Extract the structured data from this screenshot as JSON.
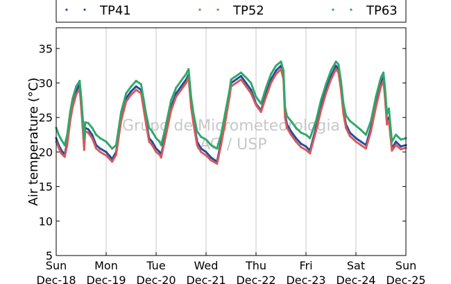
{
  "chart_data": {
    "type": "scatter",
    "ylabel": "Air temperature (°C)",
    "xlabel": "",
    "title": "",
    "ylim": [
      5,
      38
    ],
    "yticks": [
      5,
      10,
      15,
      20,
      25,
      30,
      35
    ],
    "xlim": [
      0,
      7
    ],
    "x_unit": "days",
    "xticks": [
      {
        "x": 0,
        "day": "Sun",
        "date": "Dec-18"
      },
      {
        "x": 1,
        "day": "Mon",
        "date": "Dec-19"
      },
      {
        "x": 2,
        "day": "Tue",
        "date": "Dec-20"
      },
      {
        "x": 3,
        "day": "Wed",
        "date": "Dec-21"
      },
      {
        "x": 4,
        "day": "Thu",
        "date": "Dec-22"
      },
      {
        "x": 5,
        "day": "Fri",
        "date": "Dec-23"
      },
      {
        "x": 6,
        "day": "Sat",
        "date": "Dec-24"
      },
      {
        "x": 7,
        "day": "Sun",
        "date": "Dec-25"
      }
    ],
    "grid": "vertical",
    "legend_position": "top",
    "watermark": [
      "Grupo de Micrometeorologia",
      "IAG / USP"
    ],
    "series": [
      {
        "name": "TP41",
        "color": "#1f4e9c",
        "points": [
          [
            0.0,
            22.0
          ],
          [
            0.05,
            21.0
          ],
          [
            0.1,
            20.3
          ],
          [
            0.17,
            19.6
          ],
          [
            0.22,
            21.5
          ],
          [
            0.28,
            25.0
          ],
          [
            0.33,
            27.0
          ],
          [
            0.4,
            28.8
          ],
          [
            0.47,
            29.8
          ],
          [
            0.5,
            27.0
          ],
          [
            0.53,
            24.0
          ],
          [
            0.56,
            20.7
          ],
          [
            0.58,
            23.5
          ],
          [
            0.64,
            23.3
          ],
          [
            0.72,
            22.5
          ],
          [
            0.8,
            21.0
          ],
          [
            0.88,
            20.5
          ],
          [
            1.0,
            20.0
          ],
          [
            1.12,
            19.0
          ],
          [
            1.2,
            20.0
          ],
          [
            1.3,
            25.0
          ],
          [
            1.4,
            27.8
          ],
          [
            1.5,
            28.8
          ],
          [
            1.6,
            29.5
          ],
          [
            1.7,
            29.0
          ],
          [
            1.8,
            24.5
          ],
          [
            1.86,
            22.0
          ],
          [
            1.92,
            21.5
          ],
          [
            2.0,
            20.5
          ],
          [
            2.07,
            20.0
          ],
          [
            2.1,
            19.5
          ],
          [
            2.17,
            22.0
          ],
          [
            2.3,
            26.5
          ],
          [
            2.4,
            28.5
          ],
          [
            2.5,
            29.5
          ],
          [
            2.6,
            30.5
          ],
          [
            2.65,
            31.2
          ],
          [
            2.7,
            27.0
          ],
          [
            2.75,
            24.5
          ],
          [
            2.82,
            21.5
          ],
          [
            2.9,
            20.5
          ],
          [
            3.0,
            20.0
          ],
          [
            3.1,
            19.2
          ],
          [
            3.22,
            18.6
          ],
          [
            3.3,
            21.5
          ],
          [
            3.4,
            25.5
          ],
          [
            3.47,
            28.5
          ],
          [
            3.5,
            30.0
          ],
          [
            3.7,
            31.0
          ],
          [
            3.8,
            30.0
          ],
          [
            3.9,
            29.0
          ],
          [
            4.0,
            27.0
          ],
          [
            4.05,
            26.5
          ],
          [
            4.1,
            26.0
          ],
          [
            4.2,
            28.5
          ],
          [
            4.3,
            30.5
          ],
          [
            4.4,
            31.8
          ],
          [
            4.5,
            32.5
          ],
          [
            4.55,
            31.0
          ],
          [
            4.58,
            25.5
          ],
          [
            4.62,
            24.0
          ],
          [
            4.7,
            23.0
          ],
          [
            4.8,
            22.0
          ],
          [
            4.9,
            21.2
          ],
          [
            5.0,
            20.8
          ],
          [
            5.08,
            20.2
          ],
          [
            5.2,
            23.5
          ],
          [
            5.3,
            26.5
          ],
          [
            5.4,
            29.0
          ],
          [
            5.5,
            31.0
          ],
          [
            5.6,
            32.5
          ],
          [
            5.65,
            32.0
          ],
          [
            5.7,
            29.5
          ],
          [
            5.75,
            26.0
          ],
          [
            5.8,
            24.0
          ],
          [
            5.88,
            22.8
          ],
          [
            6.0,
            22.0
          ],
          [
            6.1,
            21.5
          ],
          [
            6.2,
            21.0
          ],
          [
            6.3,
            23.5
          ],
          [
            6.4,
            27.0
          ],
          [
            6.5,
            30.0
          ],
          [
            6.55,
            30.8
          ],
          [
            6.58,
            28.5
          ],
          [
            6.62,
            24.5
          ],
          [
            6.66,
            25.0
          ],
          [
            6.72,
            20.5
          ],
          [
            6.8,
            21.5
          ],
          [
            6.9,
            20.8
          ],
          [
            7.0,
            21.0
          ]
        ]
      },
      {
        "name": "TP52",
        "color": "#d85a5a",
        "points": [
          [
            0.0,
            21.5
          ],
          [
            0.05,
            20.6
          ],
          [
            0.1,
            19.8
          ],
          [
            0.17,
            19.3
          ],
          [
            0.22,
            21.0
          ],
          [
            0.28,
            24.5
          ],
          [
            0.33,
            26.5
          ],
          [
            0.4,
            28.3
          ],
          [
            0.47,
            29.2
          ],
          [
            0.5,
            26.5
          ],
          [
            0.53,
            23.5
          ],
          [
            0.56,
            20.3
          ],
          [
            0.58,
            23.0
          ],
          [
            0.64,
            22.8
          ],
          [
            0.72,
            22.0
          ],
          [
            0.8,
            20.5
          ],
          [
            0.88,
            20.0
          ],
          [
            1.0,
            19.5
          ],
          [
            1.12,
            18.6
          ],
          [
            1.2,
            19.6
          ],
          [
            1.3,
            24.5
          ],
          [
            1.4,
            27.3
          ],
          [
            1.5,
            28.3
          ],
          [
            1.6,
            29.0
          ],
          [
            1.7,
            28.5
          ],
          [
            1.8,
            24.0
          ],
          [
            1.86,
            21.5
          ],
          [
            1.92,
            21.0
          ],
          [
            2.0,
            20.0
          ],
          [
            2.07,
            19.6
          ],
          [
            2.1,
            19.2
          ],
          [
            2.17,
            21.5
          ],
          [
            2.3,
            26.0
          ],
          [
            2.4,
            28.0
          ],
          [
            2.5,
            29.0
          ],
          [
            2.6,
            30.0
          ],
          [
            2.65,
            30.8
          ],
          [
            2.7,
            26.5
          ],
          [
            2.75,
            24.0
          ],
          [
            2.82,
            21.0
          ],
          [
            2.9,
            20.0
          ],
          [
            3.0,
            19.5
          ],
          [
            3.1,
            18.8
          ],
          [
            3.22,
            18.3
          ],
          [
            3.3,
            21.0
          ],
          [
            3.4,
            25.0
          ],
          [
            3.47,
            28.0
          ],
          [
            3.5,
            29.5
          ],
          [
            3.7,
            30.5
          ],
          [
            3.8,
            29.5
          ],
          [
            3.9,
            28.5
          ],
          [
            4.0,
            26.8
          ],
          [
            4.05,
            26.3
          ],
          [
            4.1,
            25.8
          ],
          [
            4.2,
            28.0
          ],
          [
            4.3,
            30.0
          ],
          [
            4.4,
            31.3
          ],
          [
            4.5,
            32.0
          ],
          [
            4.55,
            30.5
          ],
          [
            4.58,
            25.0
          ],
          [
            4.62,
            23.5
          ],
          [
            4.7,
            22.5
          ],
          [
            4.8,
            21.5
          ],
          [
            4.9,
            20.7
          ],
          [
            5.0,
            20.3
          ],
          [
            5.08,
            19.8
          ],
          [
            5.2,
            23.0
          ],
          [
            5.3,
            26.0
          ],
          [
            5.4,
            28.5
          ],
          [
            5.5,
            30.5
          ],
          [
            5.6,
            32.0
          ],
          [
            5.65,
            31.5
          ],
          [
            5.7,
            29.0
          ],
          [
            5.75,
            25.5
          ],
          [
            5.8,
            23.5
          ],
          [
            5.88,
            22.3
          ],
          [
            6.0,
            21.5
          ],
          [
            6.1,
            21.0
          ],
          [
            6.2,
            20.5
          ],
          [
            6.3,
            23.0
          ],
          [
            6.4,
            26.5
          ],
          [
            6.5,
            29.5
          ],
          [
            6.55,
            30.3
          ],
          [
            6.58,
            28.0
          ],
          [
            6.62,
            24.0
          ],
          [
            6.66,
            24.5
          ],
          [
            6.72,
            20.2
          ],
          [
            6.8,
            21.0
          ],
          [
            6.9,
            20.4
          ],
          [
            7.0,
            20.6
          ]
        ]
      },
      {
        "name": "TP63",
        "color": "#2ea86a",
        "points": [
          [
            0.0,
            23.5
          ],
          [
            0.05,
            22.5
          ],
          [
            0.1,
            21.8
          ],
          [
            0.17,
            21.0
          ],
          [
            0.22,
            22.5
          ],
          [
            0.28,
            25.8
          ],
          [
            0.33,
            27.8
          ],
          [
            0.4,
            29.5
          ],
          [
            0.47,
            30.3
          ],
          [
            0.5,
            28.0
          ],
          [
            0.53,
            25.0
          ],
          [
            0.56,
            22.0
          ],
          [
            0.58,
            24.3
          ],
          [
            0.64,
            24.2
          ],
          [
            0.72,
            23.5
          ],
          [
            0.8,
            22.5
          ],
          [
            0.88,
            22.0
          ],
          [
            1.0,
            21.5
          ],
          [
            1.12,
            20.5
          ],
          [
            1.2,
            21.0
          ],
          [
            1.3,
            25.8
          ],
          [
            1.4,
            28.5
          ],
          [
            1.5,
            29.5
          ],
          [
            1.6,
            30.3
          ],
          [
            1.7,
            29.8
          ],
          [
            1.8,
            25.5
          ],
          [
            1.86,
            23.5
          ],
          [
            1.92,
            23.0
          ],
          [
            2.0,
            22.0
          ],
          [
            2.07,
            21.5
          ],
          [
            2.1,
            21.0
          ],
          [
            2.17,
            23.0
          ],
          [
            2.3,
            27.5
          ],
          [
            2.4,
            29.3
          ],
          [
            2.5,
            30.3
          ],
          [
            2.6,
            31.3
          ],
          [
            2.65,
            32.0
          ],
          [
            2.7,
            28.0
          ],
          [
            2.75,
            25.5
          ],
          [
            2.82,
            23.0
          ],
          [
            2.9,
            22.2
          ],
          [
            3.0,
            21.8
          ],
          [
            3.1,
            21.0
          ],
          [
            3.22,
            20.5
          ],
          [
            3.3,
            22.5
          ],
          [
            3.4,
            26.3
          ],
          [
            3.47,
            29.0
          ],
          [
            3.5,
            30.5
          ],
          [
            3.7,
            31.5
          ],
          [
            3.8,
            30.8
          ],
          [
            3.9,
            30.0
          ],
          [
            4.0,
            28.0
          ],
          [
            4.05,
            27.5
          ],
          [
            4.1,
            27.0
          ],
          [
            4.2,
            29.3
          ],
          [
            4.3,
            31.3
          ],
          [
            4.4,
            32.5
          ],
          [
            4.5,
            33.1
          ],
          [
            4.55,
            31.8
          ],
          [
            4.58,
            26.5
          ],
          [
            4.62,
            25.2
          ],
          [
            4.7,
            24.5
          ],
          [
            4.8,
            23.5
          ],
          [
            4.9,
            22.8
          ],
          [
            5.0,
            22.5
          ],
          [
            5.08,
            22.0
          ],
          [
            5.2,
            24.5
          ],
          [
            5.3,
            27.5
          ],
          [
            5.4,
            29.8
          ],
          [
            5.5,
            31.8
          ],
          [
            5.6,
            33.1
          ],
          [
            5.65,
            32.7
          ],
          [
            5.7,
            30.3
          ],
          [
            5.75,
            27.0
          ],
          [
            5.8,
            25.3
          ],
          [
            5.88,
            24.5
          ],
          [
            6.0,
            23.8
          ],
          [
            6.1,
            23.2
          ],
          [
            6.2,
            22.5
          ],
          [
            6.3,
            24.5
          ],
          [
            6.4,
            28.0
          ],
          [
            6.5,
            30.8
          ],
          [
            6.55,
            31.5
          ],
          [
            6.58,
            29.5
          ],
          [
            6.62,
            25.5
          ],
          [
            6.66,
            26.3
          ],
          [
            6.72,
            21.5
          ],
          [
            6.8,
            22.5
          ],
          [
            6.9,
            21.8
          ],
          [
            7.0,
            22.0
          ]
        ]
      }
    ]
  }
}
